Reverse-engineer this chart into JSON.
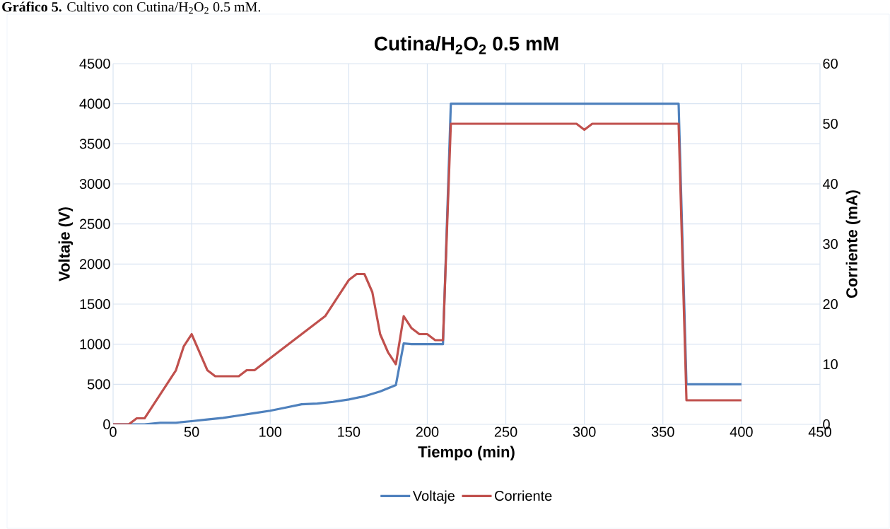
{
  "chart_data": {
    "type": "line",
    "title": "Cutina/H$_{2}$O$_{2}$ 0.5 mM",
    "xlabel": "Tiempo (min)",
    "ylabel": "Voltaje (V)",
    "y2label": "Corriente (mA)",
    "annotations": [
      "**Gráfico 5.** Cultivo con Cutina/H$_{2}$O$_{2}$ 0.5 mM."
    ],
    "xlim": [
      0,
      450
    ],
    "xticks": [
      0,
      50,
      100,
      150,
      200,
      250,
      300,
      350,
      400,
      450
    ],
    "ylim": [
      0,
      4500
    ],
    "yticks": [
      0,
      500,
      1000,
      1500,
      2000,
      2500,
      3000,
      3500,
      4000,
      4500
    ],
    "y2lim": [
      0,
      60
    ],
    "y2ticks": [
      0,
      10,
      20,
      30,
      40,
      50,
      60
    ],
    "grid": true,
    "legend": "bottom",
    "marker": "none",
    "line_style": "solid",
    "series": [
      {
        "name": "Voltaje",
        "color": "#4f81bd",
        "x": [
          0,
          5,
          10,
          15,
          20,
          30,
          40,
          50,
          60,
          70,
          80,
          90,
          100,
          110,
          120,
          130,
          140,
          150,
          160,
          170,
          180,
          185,
          190,
          200,
          210,
          215,
          360,
          365,
          370,
          380,
          400
        ],
        "values": [
          0,
          0,
          0,
          0,
          0,
          20,
          20,
          40,
          60,
          80,
          110,
          140,
          170,
          210,
          250,
          260,
          280,
          310,
          350,
          410,
          490,
          1010,
          1000,
          1000,
          1000,
          4000,
          4000,
          500,
          500,
          500,
          500
        ]
      },
      {
        "name": "Corriente",
        "color": "#c0504d",
        "axis": "y2",
        "x": [
          0,
          10,
          15,
          20,
          40,
          45,
          50,
          60,
          65,
          80,
          85,
          90,
          135,
          150,
          155,
          160,
          165,
          170,
          175,
          180,
          185,
          190,
          195,
          200,
          205,
          210,
          215,
          295,
          300,
          305,
          360,
          365,
          400
        ],
        "values": [
          0,
          0,
          1,
          1,
          9,
          13,
          15,
          9,
          8,
          8,
          9,
          9,
          18,
          24,
          25,
          25,
          22,
          15,
          12,
          10,
          18,
          16,
          15,
          15,
          14,
          14,
          50,
          50,
          49,
          50,
          50,
          4,
          4
        ]
      }
    ]
  }
}
